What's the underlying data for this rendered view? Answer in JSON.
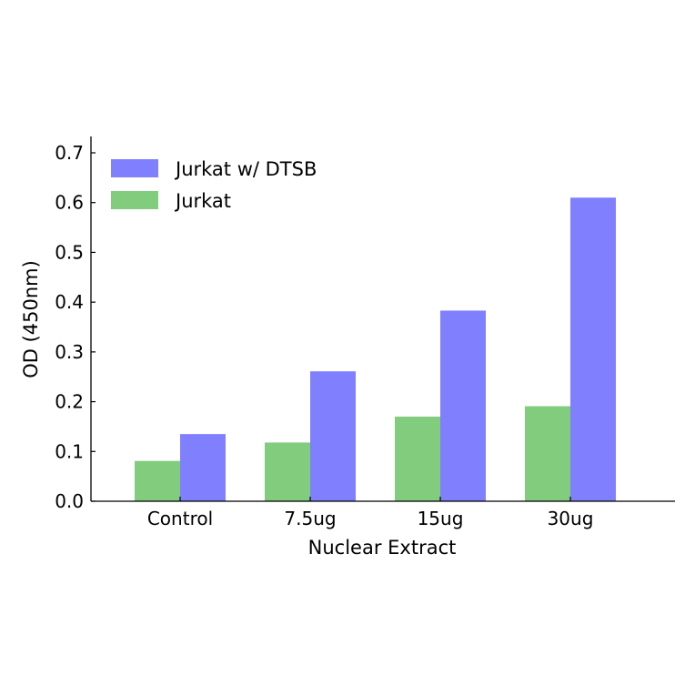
{
  "chart_data": {
    "type": "bar",
    "categories": [
      "Control",
      "7.5ug",
      "15ug",
      "30ug"
    ],
    "series": [
      {
        "name": "Jurkat",
        "values": [
          0.081,
          0.118,
          0.17,
          0.191
        ],
        "color": "#82cc7e"
      },
      {
        "name": "Jurkat w/ DTSB",
        "values": [
          0.135,
          0.261,
          0.383,
          0.61
        ],
        "color": "#8080ff"
      }
    ],
    "xlabel": "Nuclear Extract",
    "ylabel": "OD (450nm)",
    "ylim": [
      0,
      0.7
    ],
    "yticks": [
      0.0,
      0.1,
      0.2,
      0.3,
      0.4,
      0.5,
      0.6,
      0.7
    ],
    "ytick_labels": [
      "0.0",
      "0.1",
      "0.2",
      "0.3",
      "0.4",
      "0.5",
      "0.6",
      "0.7"
    ],
    "grid": false,
    "legend": {
      "placement": "top-left",
      "entries": [
        "Jurkat w/ DTSB",
        "Jurkat"
      ]
    }
  }
}
